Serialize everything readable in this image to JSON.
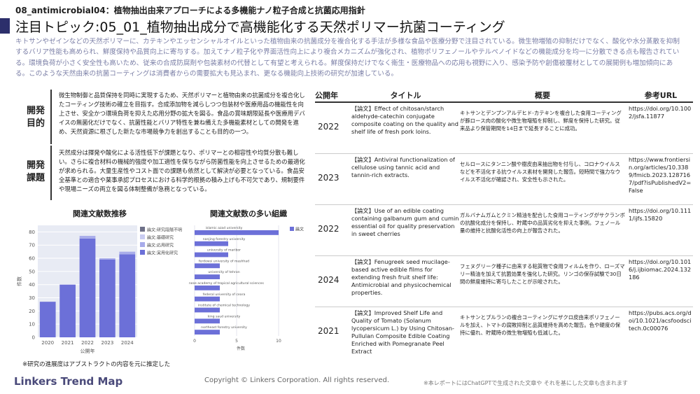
{
  "header": {
    "code": "08_antimicrobial04：植物抽出由来アプローチによる多機能ナノ粒子合成と抗菌応用指針",
    "title": "注目トピック:05_01_植物抽出成分で高機能化する天然ポリマー抗菌コーティング"
  },
  "intro": "キトサンやゼインなどの天然ポリマーに、カテキンやエッセンシャルオイルといった植物由来の抗菌成分を複合化する手法が多様な食品や医療分野で注目されている。微生物増殖の抑制だけでなく、酸化や水分蒸散を抑制するバリア性能も高められ、鮮度保持や品質向上に寄与する。加えてナノ粒子化や界面活性向上により複合メカニズムが強化され、植物ポリフェノールやテルペノイドなどの機能成分を均一に分散できる点も報告されている。環境負荷が小さく安全性も高いため、従来の合成防腐剤や包装素材の代替として有望と考えられる。鮮度保持だけでなく衛生・医療物品への応用も視野に入り、感染予防や創傷被覆材としての展開例も増加傾向にある。このような天然由来の抗菌コーティングは消費者からの需要拡大も見込まれ、更なる機能向上技術の研究が加速している。",
  "sections": [
    {
      "label": "開発目的",
      "text": "微生物制御と品質保持を同時に実現するため、天然ポリマーと植物由来の抗菌成分を複合化したコーティング技術の確立を目指す。合成添加物を減らしつつ包装材や医療用品の機能性を向上させ、安全かつ環境負荷を抑えた応用分野の拡大を図る。食品の賞味期限延長や医療用デバイスの無菌化だけでなく、抗菌性能とバリア特性を兼ね備えた多機能素材としての開発を進め、天然資源に根ざした新たな市場競争力を創出することも目的の一つ。"
    },
    {
      "label": "開発課題",
      "text": "天然成分は揮発や酸化による活性低下が課題となり、ポリマーとの相容性や均質分散も難しい。さらに複合材料の機械的強度や加工適性を保ちながら防菌性能を向上させるための最適化が求められる。大量生産性やコスト面での課題も依然として解決が必要となっている。食品安全基準との適合や薬事承認プロセスにおける科学的根拠の積み上げも不可欠であり、規制要件や現場ニーズの両立を図る体制整備が急務となっている。"
    }
  ],
  "charts": [
    {
      "type": "stacked-bar",
      "title": "関連文献数推移",
      "x_label": "公開年",
      "y_label": "件数",
      "categories": [
        "2020",
        "2021",
        "2022",
        "2023",
        "2024"
      ],
      "series": [
        {
          "name": "論文:実用化研究",
          "color": "#6c70d8",
          "values": [
            27,
            40,
            75,
            59,
            63
          ]
        },
        {
          "name": "論文:応用研究",
          "color": "#a8acea",
          "values": [
            0,
            0,
            2,
            1,
            2
          ]
        },
        {
          "name": "論文:基礎研究",
          "color": "#c9ccf2",
          "values": [
            0,
            0,
            0,
            0,
            0
          ]
        },
        {
          "name": "論文:研究段階不明",
          "color": "#6e7088",
          "values": [
            0,
            0,
            0,
            0,
            0
          ]
        }
      ],
      "ylim": [
        0,
        85
      ],
      "yticks": [
        0,
        10,
        20,
        30,
        40,
        50,
        60,
        70,
        80
      ],
      "grid": true
    },
    {
      "type": "hbar",
      "title": "関連文献数の多い組織",
      "x_label": "件数",
      "categories": [
        "islamic azad university",
        "nanjing forestry university",
        "university of maribor",
        "ferdowsi university of mashhad",
        "university of tehran",
        "chinese academy of tropical agricultural sciences",
        "federal university of ceara",
        "institute of chemical technology",
        "king saud university",
        "northeast forestry university"
      ],
      "series": [
        {
          "name": "論文",
          "color": "#6c70d8",
          "values": [
            10,
            4,
            4,
            3,
            3,
            3,
            3,
            3,
            3,
            3
          ]
        }
      ],
      "xlim": [
        0,
        11
      ],
      "xticks": [
        0,
        5,
        10
      ],
      "grid": true
    }
  ],
  "note": "※研究の進展度はアブストラクトの内容を元に推定した",
  "table": {
    "header": [
      "公開年",
      "タイトル",
      "概要",
      "参考URL"
    ],
    "rows": [
      [
        "2022",
        "【論文】Effect of chitosan/starch aldehyde-catechin conjugate composite coating on the quality and shelf life of fresh pork loins.",
        "キトサンとデンプンアルデヒド-カテキンを複合した食用コーティングが豚ロース肉の酸化や微生物増殖を抑制し、鮮度を保持した研究。従来品より保管期間を14日まで延長することに成功。",
        "https://doi.org/10.1002/jsfa.11877"
      ],
      [
        "2023",
        "【論文】Antiviral functionalization of cellulose using tannic acid and tannin-rich extracts.",
        "セルロースにタンニン酸や樹皮由来抽出物を付与し、コロナウイルスなどを不活化する抗ウイルス素材を開発した報告。短時間で強力なウイルス不活化が確認され、安全性も示された。",
        "https://www.frontiersin.org/articles/10.3389/fmicb.2023.1287167/pdf?isPublishedV2=False"
      ],
      [
        "2022",
        "【論文】Use of an edible coating containing galbanum gum and cumin essential oil for quality preservation in sweet cherries",
        "ガルバナムガムとクミン精油を配合した食用コーティングがサクランボの抗酸化成分を保持し、貯蔵中の品質劣化を抑えた事例。フェノール量の維持と抗酸化活性の向上が報告された。",
        "https://doi.org/10.1111/ijfs.15820"
      ],
      [
        "2024",
        "【論文】Fenugreek seed mucilage-based active edible films for extending fresh fruit shelf life: Antimicrobial and physicochemical properties.",
        "フェヌグリーク種子に由来する粘質物で食用フィルムを作り、ローズマリー精油を加えて抗菌効果を強化した研究。リンゴの保存試験で30日間の鮮度維持に寄与したことが示唆された。",
        "https://doi.org/10.1016/j.ijbiomac.2024.132186"
      ],
      [
        "2021",
        "【論文】Improved Shelf Life and Quality of Tomato (Solanum lycopersicum L.) by Using Chitosan-Pullulan Composite Edible Coating Enriched with Pomegranate Peel Extract",
        "キトサンとプルランの複合コーティングにザクロ皮由来ポリフェノールを加え、トマトの腐敗抑制と品質維持を高めた報告。色や硬度の保持に優れ、貯蔵時の微生物増殖も低減した。",
        "https://pubs.acs.org/doi/10.1021/acsfoodscitech.0c00076"
      ]
    ]
  },
  "footer": {
    "logo": "Linkers Trend Map",
    "copyright": "Copyright © Linkers Corporation. All rights reserved.",
    "disclaimer": "※本レポートにはChatGPTで生成された文章や それを基にした文章も含まれます"
  }
}
